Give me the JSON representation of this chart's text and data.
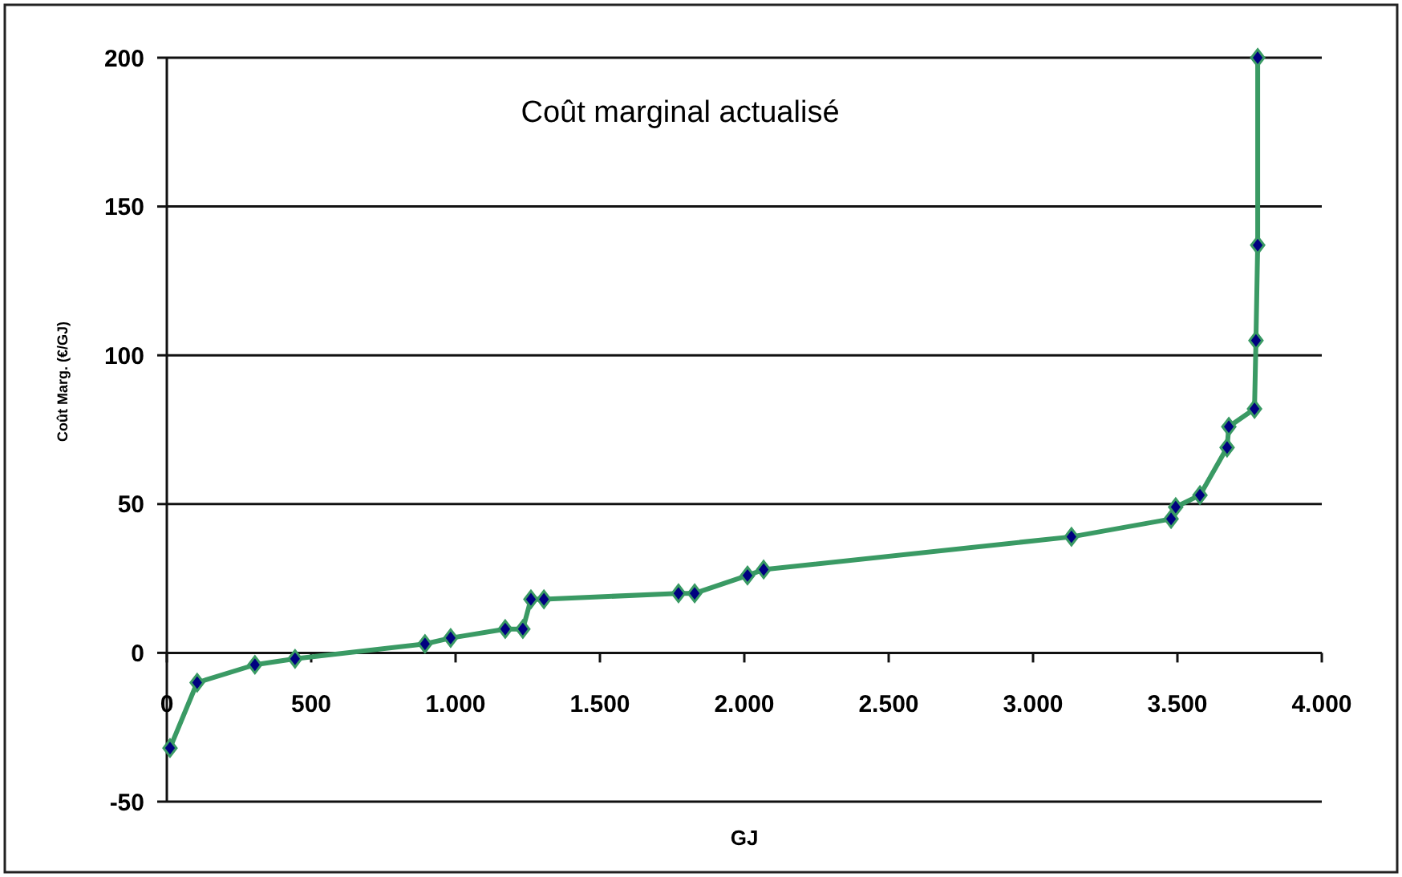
{
  "chart_data": {
    "type": "line",
    "title": "Coût marginal actualisé",
    "xlabel": "GJ",
    "ylabel": "Coût Marg. (€/GJ)",
    "x": [
      11,
      105,
      305,
      444,
      894,
      983,
      1172,
      1233,
      1261,
      1306,
      1772,
      1828,
      2011,
      2067,
      3133,
      3478,
      3494,
      3578,
      3672,
      3678,
      3767,
      3772,
      3778,
      3778
    ],
    "series": [
      {
        "color": "#3a9a64",
        "values": [
          -32,
          -10,
          -4,
          -2,
          3,
          5,
          8,
          8,
          18,
          18,
          20,
          20,
          26,
          28,
          39,
          45,
          49,
          53,
          69,
          76,
          82,
          105,
          137,
          200
        ]
      }
    ],
    "xlim": [
      0,
      4000
    ],
    "ylim": [
      -50,
      200
    ],
    "xticks": [
      0,
      500,
      {
        "value": 1000,
        "label": "1.000"
      },
      {
        "value": 1500,
        "label": "1.500"
      },
      {
        "value": 2000,
        "label": "2.000"
      },
      {
        "value": 2500,
        "label": "2.500"
      },
      {
        "value": 3000,
        "label": "3.000"
      },
      {
        "value": 3500,
        "label": "3.500"
      },
      {
        "value": 4000,
        "label": "4.000"
      }
    ],
    "yticks": [
      -50,
      0,
      50,
      100,
      150,
      200
    ],
    "grid": "y",
    "marker": "diamond",
    "line_style": "solid"
  }
}
